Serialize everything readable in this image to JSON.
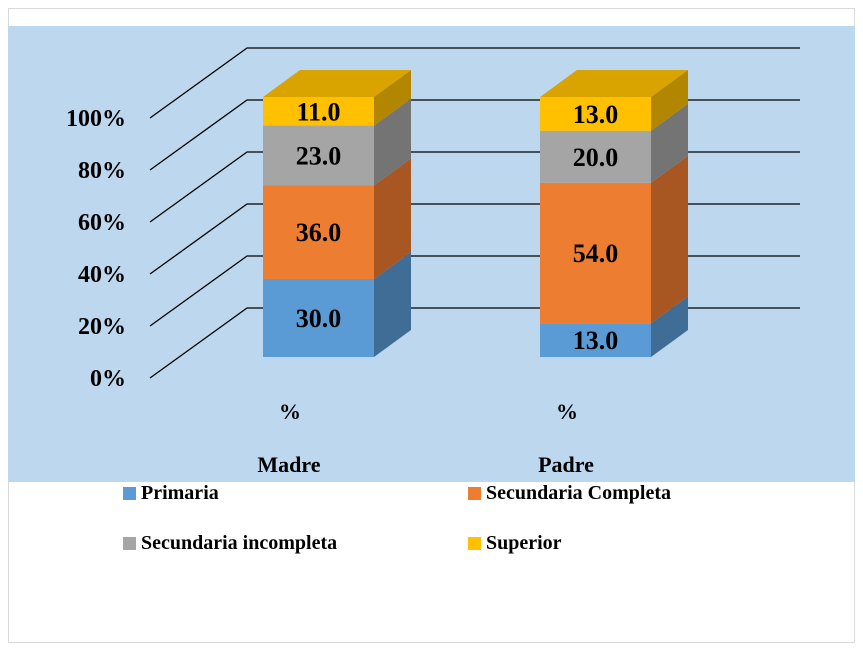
{
  "chart_data": {
    "type": "bar",
    "stacked": true,
    "three_d": true,
    "categories": [
      "Madre",
      "Padre"
    ],
    "category_sublabel": "%",
    "series": [
      {
        "name": "Primaria",
        "values": [
          30.0,
          13.0
        ],
        "labels": [
          "30.0",
          "13.0"
        ],
        "color": "#5b9bd5",
        "side_color": "#3f6d96",
        "top_color": "#4f87ba"
      },
      {
        "name": "Secundaria Completa",
        "values": [
          36.0,
          54.0
        ],
        "labels": [
          "36.0",
          "54.0"
        ],
        "color": "#ed7d31",
        "side_color": "#a85722",
        "top_color": "#c9692a"
      },
      {
        "name": "Secundaria incompleta",
        "values": [
          23.0,
          20.0
        ],
        "labels": [
          "23.0",
          "20.0"
        ],
        "color": "#a5a5a5",
        "side_color": "#747474",
        "top_color": "#8d8d8d"
      },
      {
        "name": "Superior",
        "values": [
          11.0,
          13.0
        ],
        "labels": [
          "11.0",
          "13.0"
        ],
        "color": "#ffc000",
        "side_color": "#b38600",
        "top_color": "#d9a300"
      }
    ],
    "y_ticks": [
      "0%",
      "20%",
      "40%",
      "60%",
      "80%",
      "100%"
    ],
    "ylim": [
      0,
      100
    ],
    "grid": true,
    "legend_position": "bottom",
    "background_color": "#bdd7ee"
  }
}
